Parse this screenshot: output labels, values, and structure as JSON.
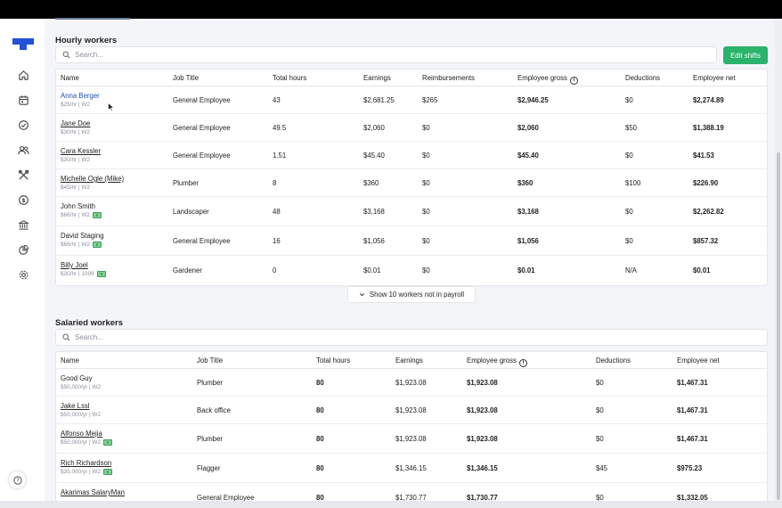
{
  "hourly": {
    "title": "Hourly workers",
    "search_placeholder": "Search...",
    "edit_button": "Edit shifts",
    "columns": [
      "Name",
      "Job Title",
      "Total hours",
      "Earnings",
      "Reimbursements",
      "Employee gross",
      "Deductions",
      "Employee net"
    ],
    "rows": [
      {
        "name": "Anna Berger",
        "sub": "$25/hr | W2",
        "job": "General Employee",
        "hours": "43",
        "earnings": "$2,681.25",
        "reimb": "$265",
        "gross": "$2,946.25",
        "deductions": "$0",
        "net": "$2,274.89"
      },
      {
        "name": "Jane Doe",
        "sub": "$30/hr | W2",
        "job": "General Employee",
        "hours": "49.5",
        "earnings": "$2,060",
        "reimb": "$0",
        "gross": "$2,060",
        "deductions": "$50",
        "net": "$1,388.19"
      },
      {
        "name": "Cara Kessler",
        "sub": "$30/hr | W2",
        "job": "General Employee",
        "hours": "1.51",
        "earnings": "$45.40",
        "reimb": "$0",
        "gross": "$45.40",
        "deductions": "$0",
        "net": "$41.53"
      },
      {
        "name": "Michelle Ogle (Mike)",
        "sub": "$45/hr | W2",
        "job": "Plumber",
        "hours": "8",
        "earnings": "$360",
        "reimb": "$0",
        "gross": "$360",
        "deductions": "$100",
        "net": "$226.90"
      },
      {
        "name": "John Smith",
        "sub": "$66/hr | W2",
        "job": "Landscaper",
        "hours": "48",
        "earnings": "$3,168",
        "reimb": "$0",
        "gross": "$3,168",
        "deductions": "$0",
        "net": "$2,262.82"
      },
      {
        "name": "David Staging",
        "sub": "$66/hr | W2",
        "job": "General Employee",
        "hours": "16",
        "earnings": "$1,056",
        "reimb": "$0",
        "gross": "$1,056",
        "deductions": "$0",
        "net": "$857.32"
      },
      {
        "name": "Billy Joel",
        "sub": "$30/hr | 1099",
        "job": "Gardener",
        "hours": "0",
        "earnings": "$0.01",
        "reimb": "$0",
        "gross": "$0.01",
        "deductions": "N/A",
        "net": "$0.01"
      }
    ],
    "show_more": "Show 10 workers not in payroll"
  },
  "salaried": {
    "title": "Salaried workers",
    "search_placeholder": "Search...",
    "columns": [
      "Name",
      "Job Title",
      "Total hours",
      "Earnings",
      "Employee gross",
      "Deductions",
      "Employee net"
    ],
    "rows": [
      {
        "name": "Good Guy",
        "sub": "$50,000/yr | W2",
        "job": "Plumber",
        "hours": "80",
        "earnings": "$1,923.08",
        "gross": "$1,923.08",
        "deductions": "$0",
        "net": "$1,467.31"
      },
      {
        "name": "Jake Lssl",
        "sub": "$50,000/yr | W2",
        "job": "Back office",
        "hours": "80",
        "earnings": "$1,923.08",
        "gross": "$1,923.08",
        "deductions": "$0",
        "net": "$1,467.31"
      },
      {
        "name": "Alfonso Mejia",
        "sub": "$50,000/yr | W2",
        "job": "Plumber",
        "hours": "80",
        "earnings": "$1,923.08",
        "gross": "$1,923.08",
        "deductions": "$0",
        "net": "$1,467.31"
      },
      {
        "name": "Rich Richardson",
        "sub": "$35,000/yr | W2",
        "job": "Flagger",
        "hours": "80",
        "earnings": "$1,346.15",
        "gross": "$1,346.15",
        "deductions": "$45",
        "net": "$975.23"
      },
      {
        "name": "Akarimas SalaryMan",
        "sub": "",
        "job": "General Employee",
        "hours": "80",
        "earnings": "$1,730.77",
        "gross": "$1,730.77",
        "deductions": "$0",
        "net": "$1,332.05"
      }
    ]
  },
  "icons": [
    "home-icon",
    "calendar-icon",
    "check-circle-icon",
    "users-icon",
    "tools-icon",
    "dollar-icon",
    "bank-icon",
    "pie-chart-icon",
    "gear-icon",
    "help-icon"
  ],
  "colors": {
    "brand": "#2051d8",
    "accent_green": "#29b36b"
  }
}
